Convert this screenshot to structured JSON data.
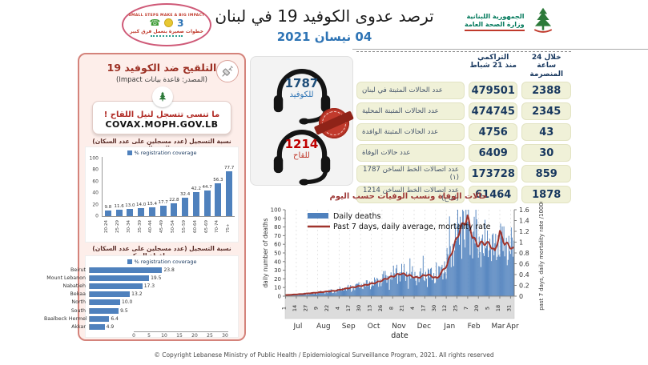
{
  "header": {
    "title": "ترصد عدوى الكوفيد 19 في لبنان",
    "date": "04 نيسان 2021",
    "moph": {
      "line1": "الجمهورية اللبنانية",
      "line2": "وزارة الصحة العامة"
    },
    "campaign": {
      "top": "SMALL STEPS MAKE A BIG IMPACT",
      "bottom": "خطوات صغيرة بتعمل فرق كبير"
    }
  },
  "vaccine_panel": {
    "title": "التلقيح ضد الكوفيد 19",
    "subtitle": "(المصدر: قاعدة بيانات Impact)",
    "register_line": "ما تنسى تتسجل لنيل اللقاح !",
    "register_url": "COVAX.MOPH.GOV.LB"
  },
  "hotlines": {
    "covid": {
      "number": "1787",
      "label": "للكوفيد"
    },
    "vaccine": {
      "number": "1214",
      "label": "للقاح"
    }
  },
  "stats_table": {
    "col_last24h": {
      "line1": "خلال 24 ساعة",
      "line2": "المنصرمة"
    },
    "col_cumulative": {
      "line1": "التراكمي",
      "line2": "منذ 21 شباط"
    },
    "rows": [
      {
        "label": "عدد الحالات المثبتة في لبنان",
        "cumulative": "479501",
        "last24h": "2388"
      },
      {
        "label": "عدد الحالات المثبتة المحلية",
        "cumulative": "474745",
        "last24h": "2345"
      },
      {
        "label": "عدد الحالات المثبتة الوافدة",
        "cumulative": "4756",
        "last24h": "43"
      },
      {
        "label": "عدد حالات الوفاة",
        "cumulative": "6409",
        "last24h": "30"
      },
      {
        "label": "عدد اتصالات الخط الساخن 1787 (١)",
        "cumulative": "173728",
        "last24h": "859"
      },
      {
        "label": "عدد اتصالات الخط الساخن 1214 (لقاح)",
        "cumulative": "61464",
        "last24h": "1878"
      }
    ]
  },
  "footer": {
    "copyright": "© Copyright Lebanese Ministry of Public Health / Epidemiological Surveillance Program, 2021. All rights reserved"
  },
  "colors": {
    "bar_blue": "#4f81bd",
    "line_red": "#a0342c",
    "table_box": "#f0f1d8",
    "navy": "#17375e",
    "panel_pink": "#fdeeea"
  },
  "chart_data": [
    {
      "type": "bar",
      "title": "نسبة التسجيل (عدد مسجلين على عدد السكان) وحسب الفئة العمرية",
      "legend": "% registration coverage",
      "categories": [
        "20-24",
        "25-29",
        "30-34",
        "35-39",
        "40-44",
        "45-49",
        "50-54",
        "55-59",
        "60-64",
        "65-69",
        "70-74",
        "75+"
      ],
      "values": [
        9.8,
        11.6,
        13.0,
        14.0,
        15.4,
        17.7,
        22.8,
        32.4,
        42.2,
        44.7,
        56.3,
        77.7
      ],
      "ylim": [
        0,
        100
      ],
      "yticks": [
        0,
        20,
        40,
        60,
        80,
        100
      ]
    },
    {
      "type": "bar-horizontal",
      "title": "نسبة التسجيل (عدد مسجلين على عدد السكان) وحسب محافظة السكن",
      "legend": "% registration coverage",
      "categories": [
        "Beirut",
        "Mount Lebanon",
        "Nabatieh",
        "Bekaa",
        "North",
        "South",
        "Baalbeck Hermel",
        "Akkar"
      ],
      "values": [
        23.8,
        19.5,
        17.3,
        13.2,
        10.0,
        9.5,
        6.4,
        4.9
      ],
      "xlim": [
        0,
        30
      ],
      "xticks": [
        0,
        5,
        10,
        15,
        20,
        25,
        30
      ]
    },
    {
      "type": "bar+line",
      "title": "حالات الوفاة ونسب الوفيات حسب اليوم",
      "legend": [
        "Daily deaths",
        "Past 7 days, daily average, mortality rate"
      ],
      "xlabel": "date",
      "ylabel_left": "daily number of deaths",
      "ylabel_right": "past 7 days, daily mortality rate /100000",
      "ylim_left": [
        0,
        100
      ],
      "yticks_left": [
        0,
        10,
        20,
        30,
        40,
        50,
        60,
        70,
        80,
        90,
        100
      ],
      "ylim_right": [
        0,
        1.6
      ],
      "yticks_right": [
        "0",
        "0.2",
        "0.4",
        "0.6",
        "0.8",
        "1",
        "1.2",
        "1.4",
        "1.6"
      ],
      "x_range": {
        "start": "2020-07-01",
        "end": "2021-04-04",
        "days": 278
      },
      "x_ticks": [
        {
          "day": 0,
          "label": "1"
        },
        {
          "day": 13,
          "label": "14"
        },
        {
          "day": 26,
          "label": "27"
        },
        {
          "day": 39,
          "label": "9"
        },
        {
          "day": 52,
          "label": "22"
        },
        {
          "day": 65,
          "label": "4"
        },
        {
          "day": 78,
          "label": "17"
        },
        {
          "day": 91,
          "label": "30"
        },
        {
          "day": 104,
          "label": "13"
        },
        {
          "day": 117,
          "label": "26"
        },
        {
          "day": 130,
          "label": "8"
        },
        {
          "day": 143,
          "label": "21"
        },
        {
          "day": 156,
          "label": "4"
        },
        {
          "day": 169,
          "label": "17"
        },
        {
          "day": 182,
          "label": "30"
        },
        {
          "day": 195,
          "label": "12"
        },
        {
          "day": 208,
          "label": "25"
        },
        {
          "day": 221,
          "label": "7"
        },
        {
          "day": 234,
          "label": "20"
        },
        {
          "day": 247,
          "label": "5"
        },
        {
          "day": 260,
          "label": "18"
        },
        {
          "day": 273,
          "label": "31"
        }
      ],
      "months": [
        {
          "label": "Jul",
          "start": 0,
          "end": 30
        },
        {
          "label": "Aug",
          "start": 31,
          "end": 61
        },
        {
          "label": "Sep",
          "start": 62,
          "end": 91
        },
        {
          "label": "Oct",
          "start": 92,
          "end": 122
        },
        {
          "label": "Nov",
          "start": 123,
          "end": 152
        },
        {
          "label": "Dec",
          "start": 153,
          "end": 183
        },
        {
          "label": "Jan",
          "start": 184,
          "end": 214
        },
        {
          "label": "Feb",
          "start": 215,
          "end": 242
        },
        {
          "label": "Mar",
          "start": 243,
          "end": 273
        },
        {
          "label": "Apr",
          "start": 274,
          "end": 277
        }
      ],
      "anchors": [
        {
          "day": 0,
          "deaths": 1,
          "rate": 0.02
        },
        {
          "day": 20,
          "deaths": 2,
          "rate": 0.04
        },
        {
          "day": 40,
          "deaths": 4,
          "rate": 0.07
        },
        {
          "day": 60,
          "deaths": 6,
          "rate": 0.1
        },
        {
          "day": 80,
          "deaths": 10,
          "rate": 0.16
        },
        {
          "day": 95,
          "deaths": 13,
          "rate": 0.2
        },
        {
          "day": 110,
          "deaths": 16,
          "rate": 0.25
        },
        {
          "day": 125,
          "deaths": 22,
          "rate": 0.34
        },
        {
          "day": 140,
          "deaths": 27,
          "rate": 0.42
        },
        {
          "day": 150,
          "deaths": 25,
          "rate": 0.38
        },
        {
          "day": 160,
          "deaths": 22,
          "rate": 0.34
        },
        {
          "day": 172,
          "deaths": 26,
          "rate": 0.4
        },
        {
          "day": 184,
          "deaths": 22,
          "rate": 0.33
        },
        {
          "day": 196,
          "deaths": 40,
          "rate": 0.58
        },
        {
          "day": 205,
          "deaths": 62,
          "rate": 0.95
        },
        {
          "day": 212,
          "deaths": 80,
          "rate": 1.25
        },
        {
          "day": 221,
          "deaths": 92,
          "rate": 1.45
        },
        {
          "day": 227,
          "deaths": 72,
          "rate": 1.1
        },
        {
          "day": 233,
          "deaths": 60,
          "rate": 0.95
        },
        {
          "day": 240,
          "deaths": 62,
          "rate": 0.99
        },
        {
          "day": 248,
          "deaths": 60,
          "rate": 0.96
        },
        {
          "day": 254,
          "deaths": 52,
          "rate": 0.82
        },
        {
          "day": 260,
          "deaths": 68,
          "rate": 1.18
        },
        {
          "day": 266,
          "deaths": 60,
          "rate": 0.98
        },
        {
          "day": 272,
          "deaths": 58,
          "rate": 0.93
        },
        {
          "day": 277,
          "deaths": 53,
          "rate": 0.86
        }
      ]
    }
  ]
}
